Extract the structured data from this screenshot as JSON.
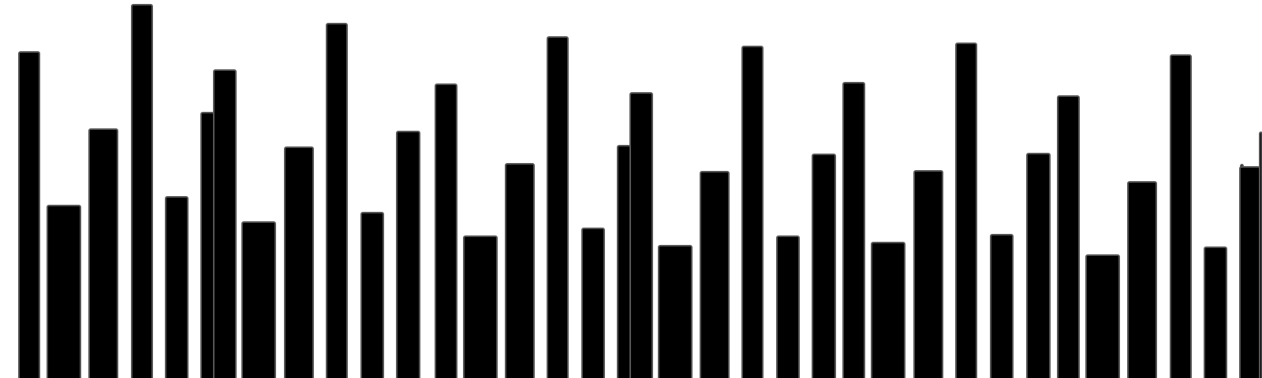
{
  "chart_data": {
    "type": "bar",
    "title": "",
    "xlabel": "",
    "ylabel": "",
    "grid": false,
    "legend": "none",
    "ylim": [
      0,
      480
    ],
    "values": [
      414,
      219,
      316,
      474,
      230,
      337,
      391,
      198,
      293,
      450,
      210,
      313,
      373,
      180,
      272,
      433,
      190,
      295,
      362,
      168,
      262,
      421,
      180,
      284,
      375,
      172,
      263,
      425,
      182,
      285,
      358,
      156,
      249,
      410,
      166,
      271,
      268,
      312
    ],
    "colors": {
      "bar_fill": "#000000",
      "bar_stroke": "#555555",
      "background": "#ffffff"
    }
  }
}
